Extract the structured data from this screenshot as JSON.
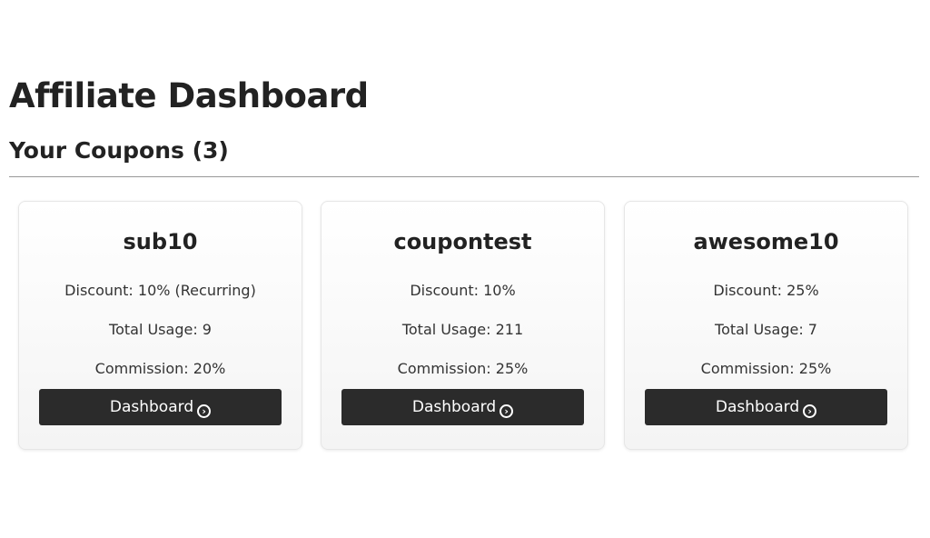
{
  "title": "Affiliate Dashboard",
  "subtitle": "Your Coupons (3)",
  "coupons": [
    {
      "code": "sub10",
      "discount": "Discount: 10% (Recurring)",
      "usage": "Total Usage: 9",
      "commission": "Commission: 20%",
      "button": "Dashboard"
    },
    {
      "code": "coupontest",
      "discount": "Discount: 10%",
      "usage": "Total Usage: 211",
      "commission": "Commission: 25%",
      "button": "Dashboard"
    },
    {
      "code": "awesome10",
      "discount": "Discount: 25%",
      "usage": "Total Usage: 7",
      "commission": "Commission: 25%",
      "button": "Dashboard"
    }
  ],
  "icons": {
    "button": "arrow-circle-right-icon"
  }
}
